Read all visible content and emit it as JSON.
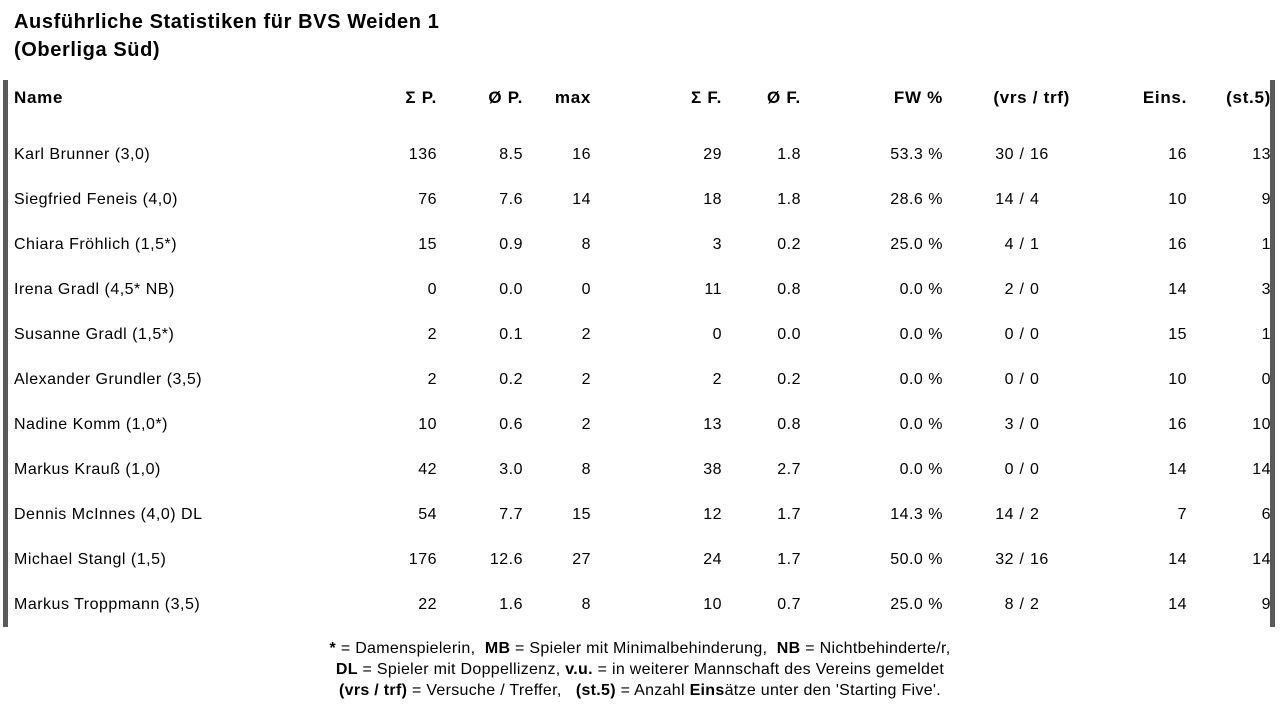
{
  "title": {
    "line1": "Ausführliche Statistiken für BVS Weiden 1",
    "line2": "(Oberliga Süd)"
  },
  "colors": {
    "text": "#000000",
    "background": "#ffffff",
    "side_bar": "#5a5a5a"
  },
  "separators": {
    "vrs_trf": "/"
  },
  "columns": [
    {
      "key": "name",
      "label": "Name"
    },
    {
      "key": "sum_p",
      "label": "Σ P."
    },
    {
      "key": "avg_p",
      "label": "Ø P."
    },
    {
      "key": "max",
      "label": "max"
    },
    {
      "key": "sum_f",
      "label": "Σ F."
    },
    {
      "key": "avg_f",
      "label": "Ø F."
    },
    {
      "key": "fw_pct",
      "label": "FW %"
    },
    {
      "key": "vrs_trf",
      "label": "(vrs / trf)"
    },
    {
      "key": "eins",
      "label": "Eins."
    },
    {
      "key": "st5",
      "label": "(st.5)"
    }
  ],
  "rows": [
    {
      "name": "Karl Brunner (3,0)",
      "sum_p": "136",
      "avg_p": "8.5",
      "max": "16",
      "sum_f": "29",
      "avg_f": "1.8",
      "fw_pct": "53.3 %",
      "vrs": "30",
      "trf": "16",
      "eins": "16",
      "st5": "13"
    },
    {
      "name": "Siegfried Feneis (4,0)",
      "sum_p": "76",
      "avg_p": "7.6",
      "max": "14",
      "sum_f": "18",
      "avg_f": "1.8",
      "fw_pct": "28.6 %",
      "vrs": "14",
      "trf": "4",
      "eins": "10",
      "st5": "9"
    },
    {
      "name": "Chiara Fröhlich (1,5*)",
      "sum_p": "15",
      "avg_p": "0.9",
      "max": "8",
      "sum_f": "3",
      "avg_f": "0.2",
      "fw_pct": "25.0 %",
      "vrs": "4",
      "trf": "1",
      "eins": "16",
      "st5": "1"
    },
    {
      "name": "Irena Gradl (4,5* NB)",
      "sum_p": "0",
      "avg_p": "0.0",
      "max": "0",
      "sum_f": "11",
      "avg_f": "0.8",
      "fw_pct": "0.0 %",
      "vrs": "2",
      "trf": "0",
      "eins": "14",
      "st5": "3"
    },
    {
      "name": "Susanne Gradl (1,5*)",
      "sum_p": "2",
      "avg_p": "0.1",
      "max": "2",
      "sum_f": "0",
      "avg_f": "0.0",
      "fw_pct": "0.0 %",
      "vrs": "0",
      "trf": "0",
      "eins": "15",
      "st5": "1"
    },
    {
      "name": "Alexander Grundler (3,5)",
      "sum_p": "2",
      "avg_p": "0.2",
      "max": "2",
      "sum_f": "2",
      "avg_f": "0.2",
      "fw_pct": "0.0 %",
      "vrs": "0",
      "trf": "0",
      "eins": "10",
      "st5": "0"
    },
    {
      "name": "Nadine Komm (1,0*)",
      "sum_p": "10",
      "avg_p": "0.6",
      "max": "2",
      "sum_f": "13",
      "avg_f": "0.8",
      "fw_pct": "0.0 %",
      "vrs": "3",
      "trf": "0",
      "eins": "16",
      "st5": "10"
    },
    {
      "name": "Markus Krauß (1,0)",
      "sum_p": "42",
      "avg_p": "3.0",
      "max": "8",
      "sum_f": "38",
      "avg_f": "2.7",
      "fw_pct": "0.0 %",
      "vrs": "0",
      "trf": "0",
      "eins": "14",
      "st5": "14"
    },
    {
      "name": "Dennis McInnes (4,0) DL",
      "sum_p": "54",
      "avg_p": "7.7",
      "max": "15",
      "sum_f": "12",
      "avg_f": "1.7",
      "fw_pct": "14.3 %",
      "vrs": "14",
      "trf": "2",
      "eins": "7",
      "st5": "6"
    },
    {
      "name": "Michael Stangl (1,5)",
      "sum_p": "176",
      "avg_p": "12.6",
      "max": "27",
      "sum_f": "24",
      "avg_f": "1.7",
      "fw_pct": "50.0 %",
      "vrs": "32",
      "trf": "16",
      "eins": "14",
      "st5": "14"
    },
    {
      "name": "Markus Troppmann (3,5)",
      "sum_p": "22",
      "avg_p": "1.6",
      "max": "8",
      "sum_f": "10",
      "avg_f": "0.7",
      "fw_pct": "25.0 %",
      "vrs": "8",
      "trf": "2",
      "eins": "14",
      "st5": "9"
    }
  ],
  "footnotes": [
    {
      "segments": [
        {
          "text": "* ",
          "bold": true
        },
        {
          "text": "= Damenspielerin,  ",
          "bold": false
        },
        {
          "text": "MB",
          "bold": true
        },
        {
          "text": " = Spieler mit Minimalbehinderung,  ",
          "bold": false
        },
        {
          "text": "NB",
          "bold": true
        },
        {
          "text": " = Nichtbehinderte/r,",
          "bold": false
        }
      ]
    },
    {
      "segments": [
        {
          "text": "DL",
          "bold": true
        },
        {
          "text": " = Spieler mit Doppellizenz, ",
          "bold": false
        },
        {
          "text": "v.u.",
          "bold": true
        },
        {
          "text": " = in weiterer Mannschaft des Vereins gemeldet",
          "bold": false
        }
      ]
    },
    {
      "segments": [
        {
          "text": "(vrs / trf)",
          "bold": true
        },
        {
          "text": " = Versuche / Treffer,   ",
          "bold": false
        },
        {
          "text": "(st.5)",
          "bold": true
        },
        {
          "text": " = Anzahl ",
          "bold": false
        },
        {
          "text": "Eins",
          "bold": true
        },
        {
          "text": "ätze unter den 'Starting Five'.",
          "bold": false
        }
      ]
    }
  ]
}
